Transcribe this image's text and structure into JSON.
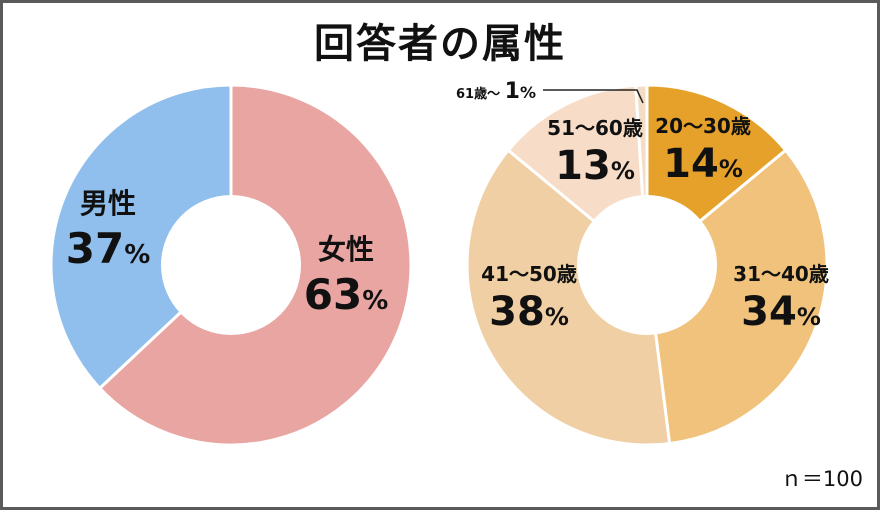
{
  "title": "回答者の属性",
  "sample_note": "ｎ＝100",
  "chart_data": [
    {
      "type": "pie",
      "style": "donut",
      "categories": [
        "女性",
        "男性"
      ],
      "values": [
        63,
        37
      ],
      "value_labels": [
        "63",
        "37"
      ],
      "unit": "%",
      "colors": [
        "#e8a5a1",
        "#90bfed"
      ]
    },
    {
      "type": "pie",
      "style": "donut",
      "categories": [
        "20～30歳",
        "31～40歳",
        "41～50歳",
        "51～60歳",
        "61歳～"
      ],
      "values": [
        14,
        34,
        38,
        13,
        1
      ],
      "value_labels": [
        "14",
        "34",
        "38",
        "13",
        "1"
      ],
      "unit": "%",
      "colors": [
        "#e6a12a",
        "#f0c27b",
        "#efcfa3",
        "#f7dcc7",
        "#f4ddc4"
      ]
    }
  ]
}
